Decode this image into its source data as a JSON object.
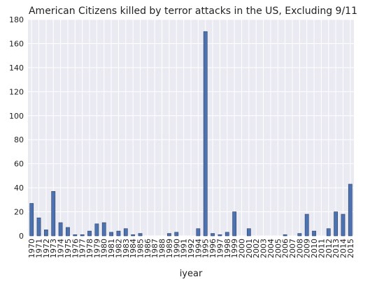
{
  "chart_data": {
    "type": "bar",
    "title": "American Citizens killed by terror attacks in the US, Excluding 9/11",
    "x_label": "iyear",
    "categories": [
      "1970",
      "1971",
      "1972",
      "1973",
      "1974",
      "1975",
      "1976",
      "1977",
      "1978",
      "1979",
      "1980",
      "1981",
      "1982",
      "1983",
      "1984",
      "1985",
      "1986",
      "1987",
      "1988",
      "1989",
      "1990",
      "1991",
      "1992",
      "1994",
      "1995",
      "1996",
      "1997",
      "1998",
      "1999",
      "2000",
      "2001",
      "2002",
      "2003",
      "2004",
      "2005",
      "2006",
      "2007",
      "2008",
      "2009",
      "2010",
      "2011",
      "2012",
      "2013",
      "2014",
      "2015"
    ],
    "values": [
      27,
      15,
      5,
      37,
      11,
      7,
      1,
      1,
      4,
      10,
      11,
      3,
      4,
      6,
      1,
      2,
      0,
      0,
      0,
      2,
      3,
      0,
      0,
      6,
      170,
      2,
      1,
      3,
      20,
      0,
      6,
      0,
      0,
      0,
      0,
      1,
      0,
      2,
      18,
      4,
      0,
      6,
      20,
      18,
      43
    ],
    "color": "#4c72b0",
    "ylim": [
      0,
      180
    ],
    "yticks": [
      0,
      20,
      40,
      60,
      80,
      100,
      120,
      140,
      160,
      180
    ],
    "grid": true
  }
}
